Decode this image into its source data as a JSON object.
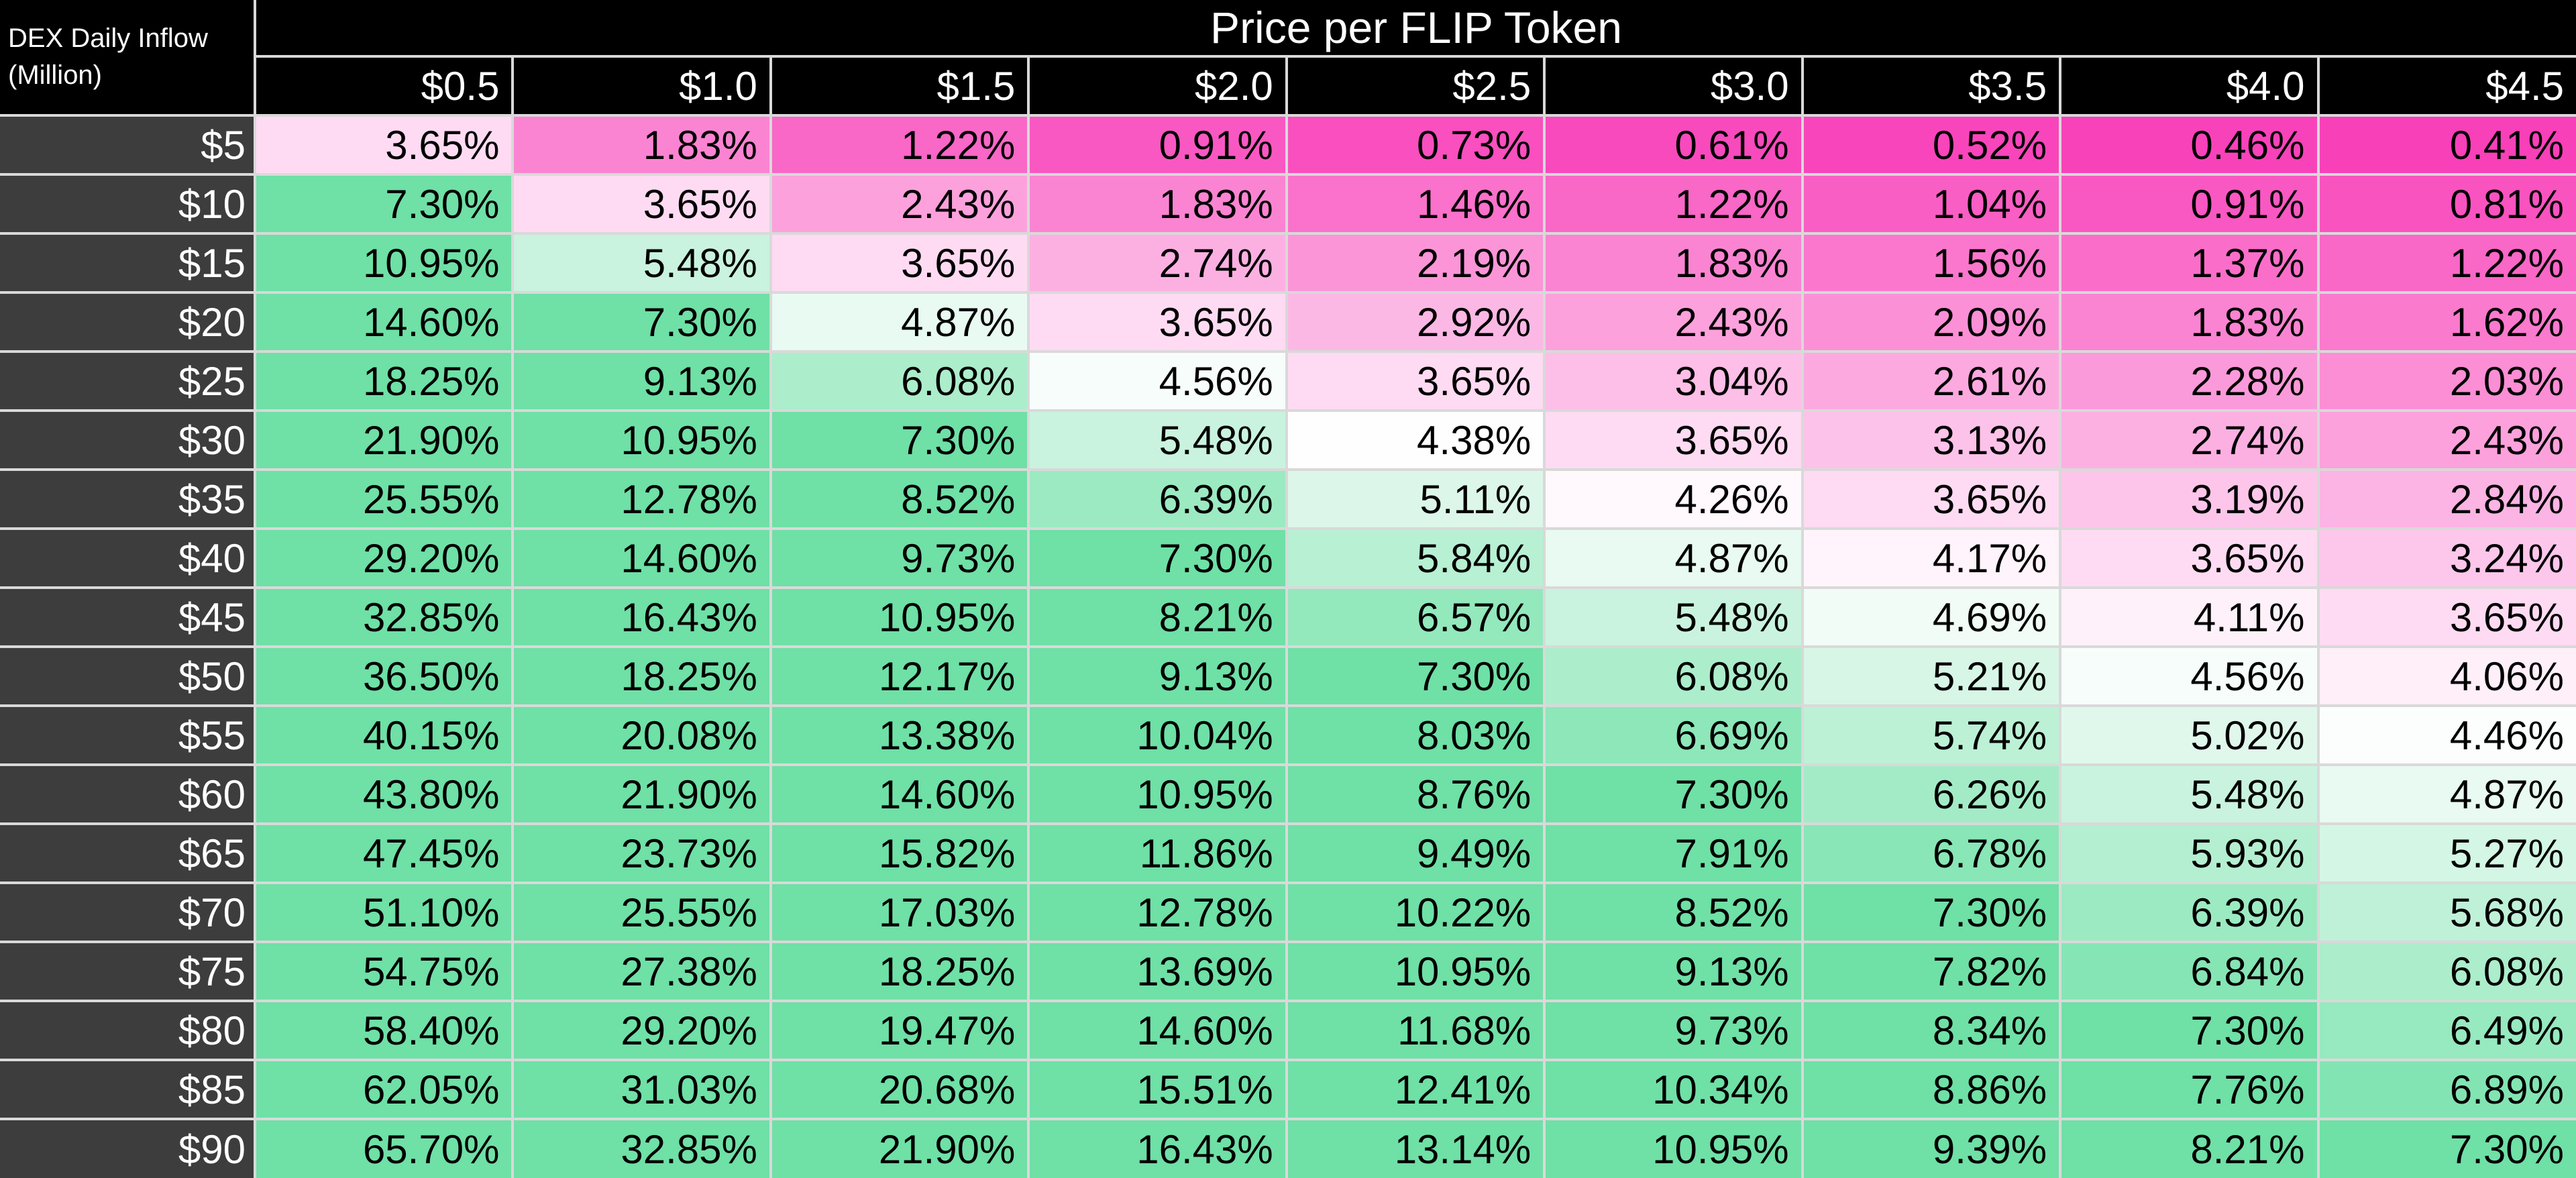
{
  "corner": {
    "line1": "DEX Daily Inflow",
    "line2": "(Million)"
  },
  "colors": {
    "header_bg": "#000000",
    "header_text": "#FFFFFF",
    "row_header_bg": "#3D3D3D",
    "cell_text": "#000000",
    "grid_border": "#D9D9D9"
  },
  "chart_data": {
    "type": "heatmap",
    "title": "Price per FLIP Token",
    "ylabel": "DEX Daily Inflow (Million)",
    "xlabel": "Price per FLIP Token",
    "x_labels": [
      "$0.5",
      "$1.0",
      "$1.5",
      "$2.0",
      "$2.5",
      "$3.0",
      "$3.5",
      "$4.0",
      "$4.5"
    ],
    "y_labels": [
      "$5",
      "$10",
      "$15",
      "$20",
      "$25",
      "$30",
      "$35",
      "$40",
      "$45",
      "$50",
      "$55",
      "$60",
      "$65",
      "$70",
      "$75",
      "$80",
      "$85",
      "$90"
    ],
    "cell_format": "0.00%",
    "values_pct": [
      [
        3.65,
        1.83,
        1.22,
        0.91,
        0.73,
        0.61,
        0.52,
        0.46,
        0.41
      ],
      [
        7.3,
        3.65,
        2.43,
        1.83,
        1.46,
        1.22,
        1.04,
        0.91,
        0.81
      ],
      [
        10.95,
        5.48,
        3.65,
        2.74,
        2.19,
        1.83,
        1.56,
        1.37,
        1.22
      ],
      [
        14.6,
        7.3,
        4.87,
        3.65,
        2.92,
        2.43,
        2.09,
        1.83,
        1.62
      ],
      [
        18.25,
        9.13,
        6.08,
        4.56,
        3.65,
        3.04,
        2.61,
        2.28,
        2.03
      ],
      [
        21.9,
        10.95,
        7.3,
        5.48,
        4.38,
        3.65,
        3.13,
        2.74,
        2.43
      ],
      [
        25.55,
        12.78,
        8.52,
        6.39,
        5.11,
        4.26,
        3.65,
        3.19,
        2.84
      ],
      [
        29.2,
        14.6,
        9.73,
        7.3,
        5.84,
        4.87,
        4.17,
        3.65,
        3.24
      ],
      [
        32.85,
        16.43,
        10.95,
        8.21,
        6.57,
        5.48,
        4.69,
        4.11,
        3.65
      ],
      [
        36.5,
        18.25,
        12.17,
        9.13,
        7.3,
        6.08,
        5.21,
        4.56,
        4.06
      ],
      [
        40.15,
        20.08,
        13.38,
        10.04,
        8.03,
        6.69,
        5.74,
        5.02,
        4.46
      ],
      [
        43.8,
        21.9,
        14.6,
        10.95,
        8.76,
        7.3,
        6.26,
        5.48,
        4.87
      ],
      [
        47.45,
        23.73,
        15.82,
        11.86,
        9.49,
        7.91,
        6.78,
        5.93,
        5.27
      ],
      [
        51.1,
        25.55,
        17.03,
        12.78,
        10.22,
        8.52,
        7.3,
        6.39,
        5.68
      ],
      [
        54.75,
        27.38,
        18.25,
        13.69,
        10.95,
        9.13,
        7.82,
        6.84,
        6.08
      ],
      [
        58.4,
        29.2,
        19.47,
        14.6,
        11.68,
        9.73,
        8.34,
        7.3,
        6.49
      ],
      [
        62.05,
        31.03,
        20.68,
        15.51,
        12.41,
        10.34,
        8.86,
        7.76,
        6.89
      ],
      [
        65.7,
        32.85,
        21.9,
        16.43,
        13.14,
        10.95,
        9.39,
        8.21,
        7.3
      ]
    ],
    "colorscale": {
      "low_color": "#F840B9",
      "mid_color": "#FFFFFF",
      "high_color": "#6FE0A6",
      "low_value": 0.41,
      "mid_value": 4.4,
      "high_value": 7.3
    },
    "legend_position": "none",
    "grid": true
  }
}
